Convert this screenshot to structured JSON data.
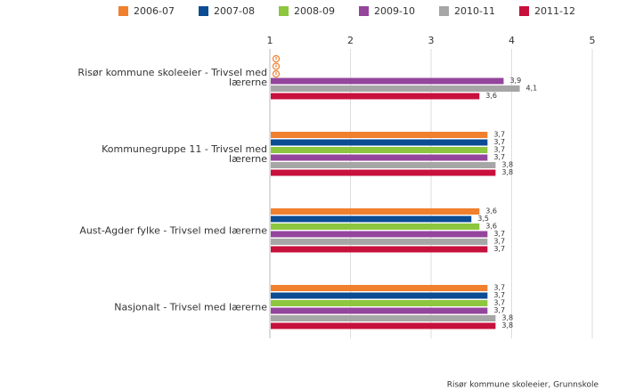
{
  "chart_data": {
    "type": "bar",
    "orientation": "horizontal",
    "categories": [
      "Risør kommune skoleeier - Trivsel med lærerne",
      "Kommunegruppe 11 - Trivsel med lærerne",
      "Aust-Agder fylke - Trivsel med lærerne",
      "Nasjonalt - Trivsel med lærerne"
    ],
    "series": [
      {
        "name": "2006-07",
        "color": "#f07f2e",
        "values": [
          null,
          3.7,
          3.6,
          3.7
        ],
        "value_labels": [
          null,
          "3,7",
          "3,6",
          "3,7"
        ]
      },
      {
        "name": "2007-08",
        "color": "#0b4c93",
        "values": [
          null,
          3.7,
          3.5,
          3.7
        ],
        "value_labels": [
          null,
          "3,7",
          "3,5",
          "3,7"
        ]
      },
      {
        "name": "2008-09",
        "color": "#8dc63f",
        "values": [
          null,
          3.7,
          3.6,
          3.7
        ],
        "value_labels": [
          null,
          "3,7",
          "3,6",
          "3,7"
        ]
      },
      {
        "name": "2009-10",
        "color": "#94459c",
        "values": [
          3.9,
          3.7,
          3.7,
          3.7
        ],
        "value_labels": [
          "3,9",
          "3,7",
          "3,7",
          "3,7"
        ]
      },
      {
        "name": "2010-11",
        "color": "#a6a6a6",
        "values": [
          4.1,
          3.8,
          3.7,
          3.8
        ],
        "value_labels": [
          "4,1",
          "3,8",
          "3,7",
          "3,8"
        ]
      },
      {
        "name": "2011-12",
        "color": "#c8103c",
        "values": [
          3.6,
          3.8,
          3.7,
          3.8
        ],
        "value_labels": [
          "3,6",
          "3,8",
          "3,7",
          "3,8"
        ]
      }
    ],
    "xlim": [
      1,
      5
    ],
    "xticks": [
      1,
      2,
      3,
      4,
      5
    ],
    "grid": true,
    "legend": "top",
    "footer": "Risør kommune skoleeier, Grunnskole"
  }
}
